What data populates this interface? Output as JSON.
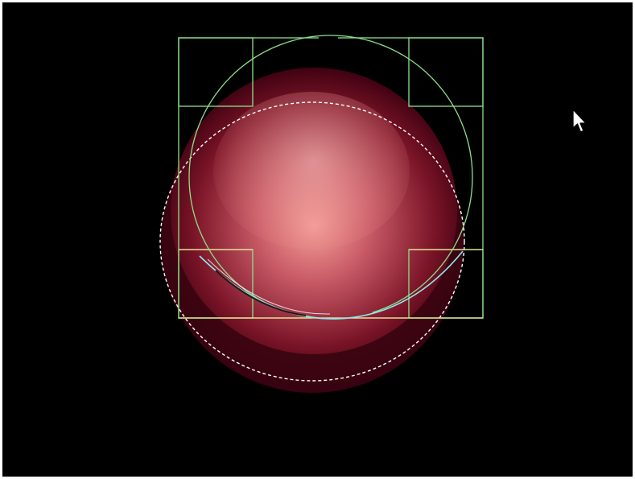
{
  "scene": {
    "background_color": "#000000",
    "frame_color": "#ffffff",
    "sphere": {
      "highlight_color": "#f6a19a",
      "mid_color": "#c85a66",
      "shadow_color": "#5e0a1a",
      "edge_color": "#3a0010",
      "gloss_color": "#f8c6c0"
    },
    "selection_outline_color": "#ffffff",
    "guide_color": "#8ee08a",
    "guide_accent_color": "#f2e6a0",
    "rim_highlight_color": "#8fe9ef"
  },
  "cursor": {
    "icon": "arrow-pointer-icon",
    "fill_color": "#ffffff",
    "outline_color": "#000000"
  }
}
